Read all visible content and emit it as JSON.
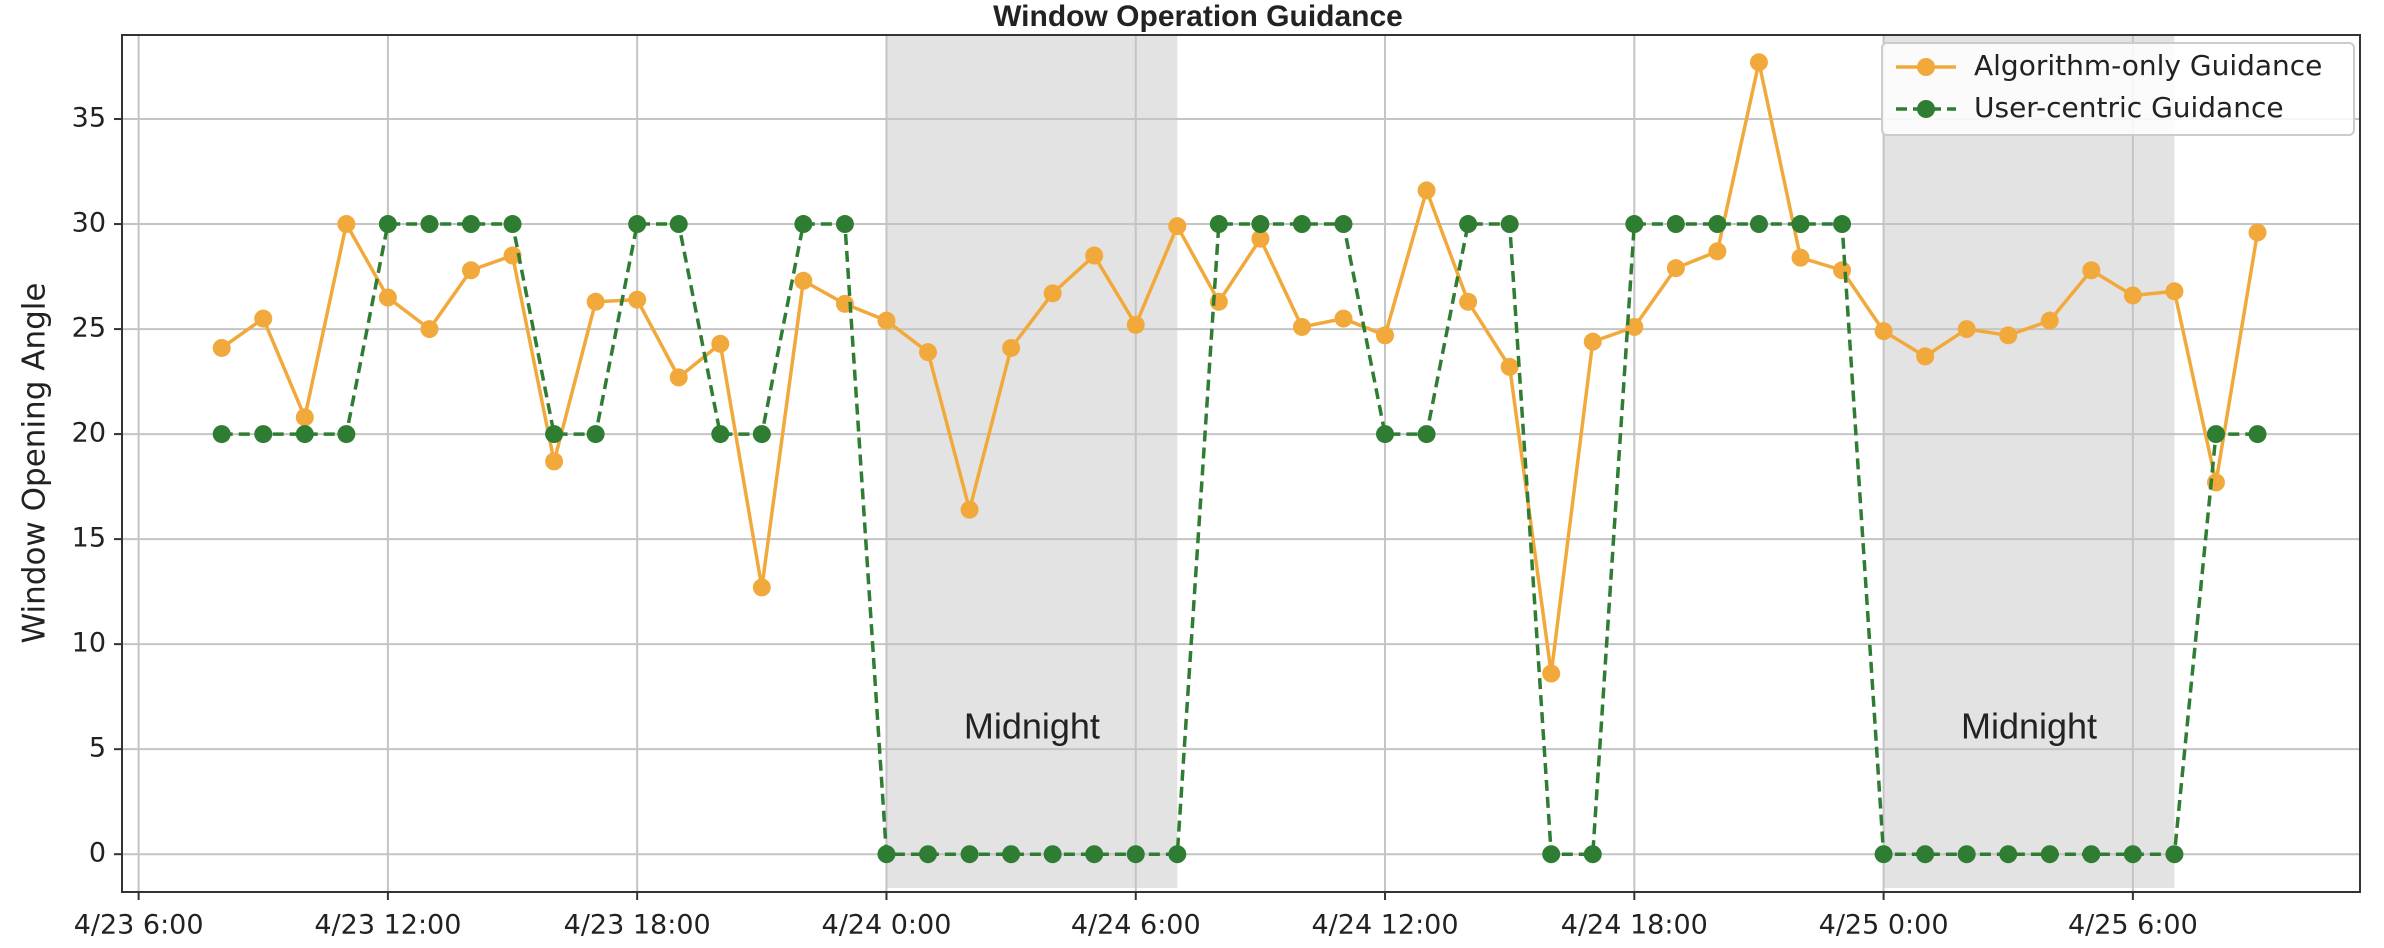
{
  "chart_data": {
    "type": "line",
    "title": "Window Operation Guidance",
    "y_label": "Window Opening Angle",
    "x": [
      "4/23 8:00",
      "4/23 9:00",
      "4/23 10:00",
      "4/23 11:00",
      "4/23 12:00",
      "4/23 13:00",
      "4/23 14:00",
      "4/23 15:00",
      "4/23 16:00",
      "4/23 17:00",
      "4/23 18:00",
      "4/23 19:00",
      "4/23 20:00",
      "4/23 21:00",
      "4/23 22:00",
      "4/23 23:00",
      "4/24 0:00",
      "4/24 1:00",
      "4/24 2:00",
      "4/24 3:00",
      "4/24 4:00",
      "4/24 5:00",
      "4/24 6:00",
      "4/24 7:00",
      "4/24 8:00",
      "4/24 9:00",
      "4/24 10:00",
      "4/24 11:00",
      "4/24 12:00",
      "4/24 13:00",
      "4/24 14:00",
      "4/24 15:00",
      "4/24 16:00",
      "4/24 17:00",
      "4/24 18:00",
      "4/24 19:00",
      "4/24 20:00",
      "4/24 21:00",
      "4/24 22:00",
      "4/24 23:00",
      "4/25 0:00",
      "4/25 1:00",
      "4/25 2:00",
      "4/25 3:00",
      "4/25 4:00",
      "4/25 5:00",
      "4/25 6:00",
      "4/25 7:00",
      "4/25 8:00",
      "4/25 9:00"
    ],
    "series": [
      {
        "name": "Algorithm-only Guidance",
        "color": "#f2a93b",
        "style": "solid",
        "values": [
          24.1,
          25.5,
          20.8,
          30.0,
          26.5,
          25.0,
          27.8,
          28.5,
          18.7,
          26.3,
          26.4,
          22.7,
          24.3,
          12.7,
          27.3,
          26.2,
          25.4,
          23.9,
          16.4,
          24.1,
          26.7,
          28.5,
          25.2,
          29.9,
          26.3,
          29.3,
          25.1,
          25.5,
          24.7,
          31.6,
          26.3,
          23.2,
          8.6,
          24.4,
          25.1,
          27.9,
          28.7,
          37.7,
          28.4,
          27.8,
          24.9,
          23.7,
          25.0,
          24.7,
          25.4,
          27.8,
          26.6,
          26.8,
          17.7,
          29.6
        ]
      },
      {
        "name": "User-centric Guidance",
        "color": "#2e7d32",
        "style": "dashed",
        "values": [
          20,
          20,
          20,
          20,
          30,
          30,
          30,
          30,
          20,
          20,
          30,
          30,
          20,
          20,
          30,
          30,
          0,
          0,
          0,
          0,
          0,
          0,
          0,
          0,
          30,
          30,
          30,
          30,
          20,
          20,
          30,
          30,
          0,
          0,
          30,
          30,
          30,
          30,
          30,
          30,
          0,
          0,
          0,
          0,
          0,
          0,
          0,
          0,
          20,
          20
        ]
      }
    ],
    "xlim": [
      "4/23 5:36",
      "4/25 11:28"
    ],
    "xticks": [
      "4/23 6:00",
      "4/23 12:00",
      "4/23 18:00",
      "4/24 0:00",
      "4/24 6:00",
      "4/24 12:00",
      "4/24 18:00",
      "4/25 0:00",
      "4/25 6:00"
    ],
    "ylim": [
      -1.8,
      39
    ],
    "yticks": [
      0,
      5,
      10,
      15,
      20,
      25,
      30,
      35
    ],
    "grid": true,
    "legend": "upper right",
    "shaded_regions": [
      {
        "start": "4/24 0:00",
        "end": "4/24 7:00",
        "label": "Midnight"
      },
      {
        "start": "4/25 0:00",
        "end": "4/25 7:00",
        "label": "Midnight"
      }
    ]
  }
}
